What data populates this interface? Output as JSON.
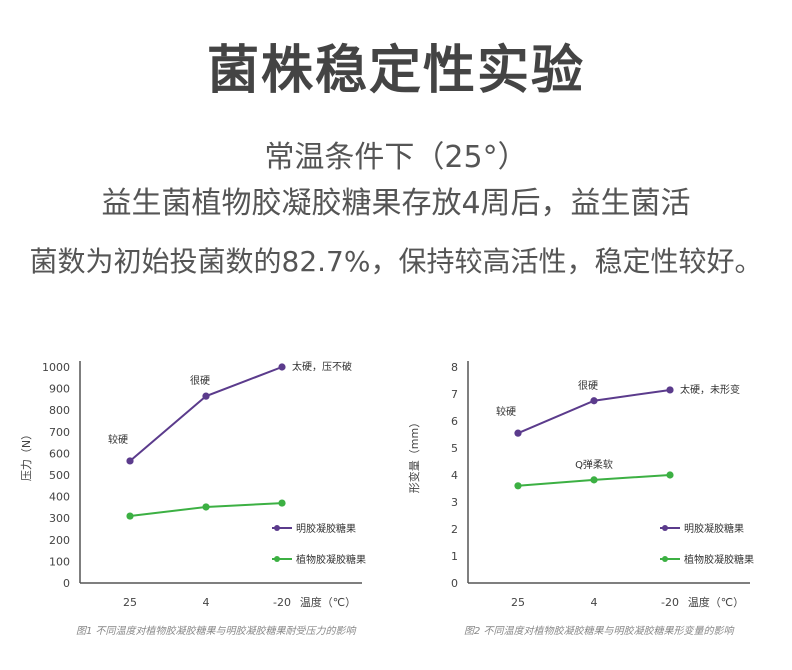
{
  "header": {
    "title": "菌株稳定性实验",
    "line1": "常温条件下（25°）",
    "line2": "益生菌植物胶凝胶糖果存放4周后，益生菌活",
    "line3": "菌数为初始投菌数的82.7%，保持较高活性，稳定性较好。"
  },
  "colors": {
    "purple": "#5b3b8c",
    "green": "#3cb043"
  },
  "chart_data": [
    {
      "type": "line",
      "categories": [
        "25",
        "4",
        "-20"
      ],
      "ylabel": "压力（N）",
      "xlabel": "温度（℃）",
      "ylim": [
        0,
        1000
      ],
      "yticks": [
        "0",
        "100",
        "200",
        "300",
        "400",
        "500",
        "600",
        "700",
        "800",
        "900",
        "1000"
      ],
      "series": [
        {
          "name": "明胶凝胶糖果",
          "values": [
            565,
            865,
            1000
          ],
          "labels": [
            "较硬",
            "很硬",
            "太硬，压不破"
          ]
        },
        {
          "name": "植物胶凝胶糖果",
          "values": [
            310,
            352,
            370
          ],
          "labels": [
            "",
            "",
            ""
          ]
        }
      ],
      "caption": "图1 不同温度对植物胶凝胶糖果与明胶凝胶糖果耐受压力的影响"
    },
    {
      "type": "line",
      "categories": [
        "25",
        "4",
        "-20"
      ],
      "ylabel": "形变量（mm）",
      "xlabel": "温度（℃）",
      "ylim": [
        0,
        8
      ],
      "yticks": [
        "0",
        "1",
        "2",
        "3",
        "4",
        "5",
        "6",
        "7",
        "8"
      ],
      "series": [
        {
          "name": "明胶凝胶糖果",
          "values": [
            5.55,
            6.75,
            7.15
          ],
          "labels": [
            "较硬",
            "很硬",
            "太硬，未形变"
          ]
        },
        {
          "name": "植物胶凝胶糖果",
          "values": [
            3.6,
            3.82,
            4.0
          ],
          "labels": [
            "",
            "Q弹柔软",
            ""
          ]
        }
      ],
      "caption": "图2 不同温度对植物胶凝胶糖果与明胶凝胶糖果形变量的影响"
    }
  ]
}
